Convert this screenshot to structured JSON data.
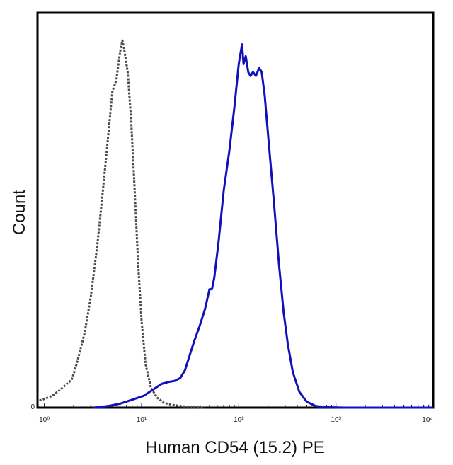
{
  "chart_data": {
    "type": "line",
    "title": "",
    "xlabel": "Human CD54 (15.2) PE",
    "ylabel": "Count",
    "xscale": "log",
    "xlim": [
      0.85,
      10000
    ],
    "ylim": [
      0,
      1.0
    ],
    "x_ticks": [
      {
        "value": 1,
        "label": "10⁰"
      },
      {
        "value": 10,
        "label": "10¹"
      },
      {
        "value": 100,
        "label": "10²"
      },
      {
        "value": 1000,
        "label": "10³"
      },
      {
        "value": 10000,
        "label": "10⁴"
      }
    ],
    "y_ticks": [
      {
        "value": 0,
        "label": "0"
      }
    ],
    "grid": false,
    "legend": "none",
    "series": [
      {
        "color": "#4a4a4a",
        "style": "dotted",
        "points": [
          [
            0.89,
            0.018
          ],
          [
            1.0,
            0.022
          ],
          [
            1.2,
            0.03
          ],
          [
            1.45,
            0.045
          ],
          [
            1.7,
            0.06
          ],
          [
            1.9,
            0.07
          ],
          [
            2.0,
            0.085
          ],
          [
            2.2,
            0.12
          ],
          [
            2.6,
            0.19
          ],
          [
            3.0,
            0.28
          ],
          [
            3.5,
            0.41
          ],
          [
            4.0,
            0.55
          ],
          [
            4.5,
            0.68
          ],
          [
            5.0,
            0.8
          ],
          [
            5.5,
            0.83
          ],
          [
            6.0,
            0.9
          ],
          [
            6.35,
            0.93
          ],
          [
            6.6,
            0.91
          ],
          [
            7.2,
            0.85
          ],
          [
            7.8,
            0.73
          ],
          [
            8.5,
            0.55
          ],
          [
            9.2,
            0.37
          ],
          [
            10,
            0.22
          ],
          [
            11,
            0.11
          ],
          [
            12.5,
            0.05
          ],
          [
            14.5,
            0.025
          ],
          [
            17,
            0.012
          ],
          [
            22,
            0.006
          ],
          [
            30,
            0.002
          ],
          [
            45,
            0.0
          ]
        ]
      },
      {
        "color": "#1111bb",
        "style": "solid",
        "points": [
          [
            3.2,
            0.0
          ],
          [
            4.5,
            0.004
          ],
          [
            6.0,
            0.01
          ],
          [
            8.0,
            0.02
          ],
          [
            10.5,
            0.03
          ],
          [
            13,
            0.045
          ],
          [
            16,
            0.06
          ],
          [
            19,
            0.065
          ],
          [
            22,
            0.068
          ],
          [
            25,
            0.075
          ],
          [
            28,
            0.095
          ],
          [
            31,
            0.13
          ],
          [
            35,
            0.17
          ],
          [
            40,
            0.21
          ],
          [
            45,
            0.25
          ],
          [
            50,
            0.3
          ],
          [
            53,
            0.3
          ],
          [
            56,
            0.33
          ],
          [
            62,
            0.42
          ],
          [
            70,
            0.55
          ],
          [
            80,
            0.65
          ],
          [
            90,
            0.76
          ],
          [
            100,
            0.87
          ],
          [
            108,
            0.92
          ],
          [
            112,
            0.87
          ],
          [
            118,
            0.89
          ],
          [
            125,
            0.85
          ],
          [
            132,
            0.84
          ],
          [
            140,
            0.85
          ],
          [
            150,
            0.84
          ],
          [
            162,
            0.86
          ],
          [
            172,
            0.85
          ],
          [
            185,
            0.79
          ],
          [
            205,
            0.66
          ],
          [
            230,
            0.52
          ],
          [
            260,
            0.36
          ],
          [
            290,
            0.24
          ],
          [
            320,
            0.16
          ],
          [
            360,
            0.09
          ],
          [
            420,
            0.04
          ],
          [
            500,
            0.015
          ],
          [
            620,
            0.004
          ],
          [
            800,
            0.001
          ],
          [
            1200,
            0.0
          ],
          [
            10000,
            0.0
          ]
        ]
      }
    ]
  }
}
